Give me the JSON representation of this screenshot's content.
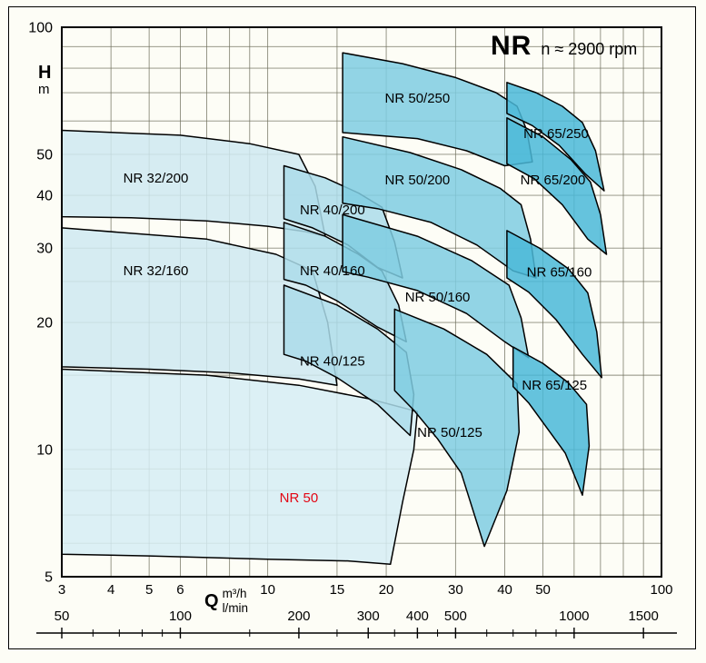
{
  "page": {
    "background": "#fdfdf6"
  },
  "title": {
    "main": "NR",
    "subtitle": "n ≈ 2900 rpm"
  },
  "axes_text": {
    "y_symbol": "H",
    "y_unit": "m",
    "x_symbol": "Q",
    "x_unit_primary": "m³/h",
    "x_unit_secondary": "l/min"
  },
  "chart_data": {
    "type": "area",
    "title": "NR",
    "subtitle": "n ≈ 2900 rpm",
    "scale": "log-log",
    "grid": true,
    "colors": {
      "grid": "#70705e",
      "frame": "#000000",
      "outline": "#000000",
      "family_32": "#cfe9f1",
      "family_40": "#abdcea",
      "family_50": "#7fcde2",
      "family_65": "#4ab9d8",
      "base": "#d6edf4",
      "red_label": "#e30613"
    },
    "x_axis": {
      "unit_primary": "m³/h",
      "unit_secondary": "l/min",
      "range_m3h": [
        3,
        100
      ],
      "labeled_ticks_m3h": [
        3,
        4,
        5,
        6,
        10,
        15,
        20,
        30,
        40,
        50,
        100
      ],
      "grid_m3h": [
        3,
        4,
        5,
        6,
        7,
        8,
        9,
        10,
        15,
        20,
        30,
        40,
        50,
        60,
        70,
        80,
        90,
        100
      ],
      "labeled_ticks_lmin": [
        50,
        100,
        200,
        300,
        400,
        500,
        1000,
        1500
      ],
      "ruler_ticks_lmin": [
        50,
        60,
        70,
        80,
        90,
        100,
        150,
        200,
        250,
        300,
        350,
        400,
        450,
        500,
        600,
        700,
        800,
        900,
        1000,
        1500
      ],
      "m3h_per_lmin": 0.06
    },
    "y_axis": {
      "unit": "m",
      "range": [
        5,
        100
      ],
      "labeled_ticks": [
        100,
        50,
        40,
        30,
        20,
        10,
        5
      ],
      "grid": [
        5,
        6,
        7,
        8,
        9,
        10,
        15,
        20,
        25,
        30,
        40,
        50,
        60,
        70,
        80,
        90,
        100
      ]
    },
    "envelopes": [
      {
        "name": "NR 50",
        "family": "base",
        "color": "#d6edf4",
        "label": {
          "q": 12,
          "h": 7.7,
          "color": "#e30613"
        },
        "points": [
          [
            3,
            15.5
          ],
          [
            7,
            15
          ],
          [
            12,
            14.2
          ],
          [
            18,
            13.2
          ],
          [
            24,
            12.3
          ],
          [
            23.5,
            10
          ],
          [
            22,
            7.5
          ],
          [
            20.5,
            5.35
          ],
          [
            16,
            5.45
          ],
          [
            10,
            5.5
          ],
          [
            5,
            5.6
          ],
          [
            3,
            5.65
          ]
        ]
      },
      {
        "name": "NR 32/200",
        "family": "32",
        "color": "#cfe9f1",
        "label": {
          "q": 5.2,
          "h": 44,
          "color": "#000000"
        },
        "points": [
          [
            3,
            57
          ],
          [
            6,
            55.5
          ],
          [
            9,
            53
          ],
          [
            12,
            50
          ],
          [
            13.2,
            42
          ],
          [
            14,
            32
          ],
          [
            12.5,
            32.8
          ],
          [
            10,
            33.8
          ],
          [
            7,
            34.8
          ],
          [
            4.5,
            35.4
          ],
          [
            3,
            35.6
          ]
        ]
      },
      {
        "name": "NR 32/160",
        "family": "32",
        "color": "#cfe9f1",
        "label": {
          "q": 5.2,
          "h": 26.5,
          "color": "#000000"
        },
        "points": [
          [
            3,
            33.5
          ],
          [
            7,
            31.5
          ],
          [
            10.5,
            29
          ],
          [
            13,
            26.5
          ],
          [
            14.2,
            20
          ],
          [
            15,
            14.2
          ],
          [
            12,
            14.7
          ],
          [
            8,
            15.2
          ],
          [
            5,
            15.5
          ],
          [
            3,
            15.7
          ]
        ]
      },
      {
        "name": "NR 40/200",
        "family": "40",
        "color": "#abdcea",
        "label": {
          "q": 14.6,
          "h": 37,
          "color": "#000000"
        },
        "points": [
          [
            11,
            47
          ],
          [
            14,
            44
          ],
          [
            17,
            40.5
          ],
          [
            19.5,
            37.5
          ],
          [
            21,
            31
          ],
          [
            22,
            25.5
          ],
          [
            19,
            27
          ],
          [
            16,
            30.5
          ],
          [
            13,
            33.5
          ],
          [
            11,
            35.2
          ]
        ]
      },
      {
        "name": "NR 40/160",
        "family": "40",
        "color": "#abdcea",
        "label": {
          "q": 14.6,
          "h": 26.5,
          "color": "#000000"
        },
        "points": [
          [
            11,
            34.5
          ],
          [
            14,
            32
          ],
          [
            17,
            29
          ],
          [
            19.5,
            26.5
          ],
          [
            21.5,
            22
          ],
          [
            22.5,
            18
          ],
          [
            19,
            19.5
          ],
          [
            15,
            22.5
          ],
          [
            12.5,
            24.5
          ],
          [
            11,
            25.3
          ]
        ]
      },
      {
        "name": "NR 40/125",
        "family": "40",
        "color": "#abdcea",
        "label": {
          "q": 14.6,
          "h": 16.2,
          "color": "#000000"
        },
        "points": [
          [
            11,
            24.5
          ],
          [
            15,
            22
          ],
          [
            19,
            19.3
          ],
          [
            22.5,
            17
          ],
          [
            23.5,
            13.5
          ],
          [
            23,
            10.8
          ],
          [
            19,
            12.8
          ],
          [
            15,
            14.8
          ],
          [
            12.5,
            16.2
          ],
          [
            11,
            16.8
          ]
        ]
      },
      {
        "name": "NR 50/250",
        "family": "50",
        "color": "#7fcde2",
        "label": {
          "q": 24,
          "h": 68,
          "color": "#000000"
        },
        "points": [
          [
            15.5,
            87
          ],
          [
            22,
            82
          ],
          [
            30,
            76
          ],
          [
            38,
            70
          ],
          [
            43,
            65
          ],
          [
            45.5,
            57
          ],
          [
            47,
            48
          ],
          [
            40,
            47
          ],
          [
            32,
            51
          ],
          [
            24,
            54.5
          ],
          [
            18,
            55.7
          ],
          [
            15.5,
            56.3
          ]
        ]
      },
      {
        "name": "NR 50/200",
        "family": "50",
        "color": "#7fcde2",
        "label": {
          "q": 24,
          "h": 43.5,
          "color": "#000000"
        },
        "points": [
          [
            15.5,
            55
          ],
          [
            23,
            50.5
          ],
          [
            31,
            46
          ],
          [
            39,
            41.5
          ],
          [
            44,
            38
          ],
          [
            46.5,
            31.5
          ],
          [
            48,
            25.5
          ],
          [
            42,
            26.5
          ],
          [
            34,
            30.5
          ],
          [
            26,
            34.5
          ],
          [
            19,
            37.2
          ],
          [
            15.5,
            38.3
          ]
        ]
      },
      {
        "name": "NR 50/160",
        "family": "50",
        "color": "#7fcde2",
        "label": {
          "q": 27,
          "h": 23,
          "color": "#000000"
        },
        "points": [
          [
            15.5,
            36
          ],
          [
            24,
            32
          ],
          [
            33,
            28
          ],
          [
            41,
            24.5
          ],
          [
            44,
            20.5
          ],
          [
            46,
            16.5
          ],
          [
            40,
            18
          ],
          [
            32,
            21
          ],
          [
            24,
            23.8
          ],
          [
            18,
            25.6
          ],
          [
            15.5,
            26.4
          ]
        ]
      },
      {
        "name": "NR 50/125",
        "family": "50",
        "color": "#7fcde2",
        "label": {
          "q": 29,
          "h": 11,
          "color": "#000000"
        },
        "points": [
          [
            21,
            21.5
          ],
          [
            28,
            19.3
          ],
          [
            36,
            16.8
          ],
          [
            43,
            14.3
          ],
          [
            43.5,
            11
          ],
          [
            40.5,
            8
          ],
          [
            35.5,
            5.9
          ],
          [
            31,
            8.8
          ],
          [
            27,
            10.6
          ],
          [
            23.5,
            12.4
          ],
          [
            21,
            13.8
          ]
        ]
      },
      {
        "name": "NR 65/250",
        "family": "65",
        "color": "#4ab9d8",
        "label": {
          "q": 54,
          "h": 56,
          "color": "#000000"
        },
        "points": [
          [
            40.5,
            74
          ],
          [
            48,
            70
          ],
          [
            56,
            65
          ],
          [
            63,
            59.5
          ],
          [
            68,
            51
          ],
          [
            71.5,
            41
          ],
          [
            64,
            45
          ],
          [
            55,
            52.5
          ],
          [
            47,
            58.5
          ],
          [
            40.5,
            62.5
          ]
        ]
      },
      {
        "name": "NR 65/200",
        "family": "65",
        "color": "#4ab9d8",
        "label": {
          "q": 53,
          "h": 43.5,
          "color": "#000000"
        },
        "points": [
          [
            40.5,
            61
          ],
          [
            50,
            55
          ],
          [
            59,
            48.5
          ],
          [
            66,
            43
          ],
          [
            70,
            36
          ],
          [
            72.5,
            29
          ],
          [
            65,
            31.5
          ],
          [
            56,
            38
          ],
          [
            47.5,
            43.8
          ],
          [
            40.5,
            47.5
          ]
        ]
      },
      {
        "name": "NR 65/160",
        "family": "65",
        "color": "#4ab9d8",
        "label": {
          "q": 55,
          "h": 26.3,
          "color": "#000000"
        },
        "points": [
          [
            40.5,
            33
          ],
          [
            49,
            30
          ],
          [
            58,
            26.8
          ],
          [
            65,
            23.5
          ],
          [
            68.5,
            19
          ],
          [
            70.5,
            14.8
          ],
          [
            63,
            16.8
          ],
          [
            54,
            20.3
          ],
          [
            46,
            23.6
          ],
          [
            40.5,
            25.5
          ]
        ]
      },
      {
        "name": "NR 65/125",
        "family": "65",
        "color": "#4ab9d8",
        "label": {
          "q": 53.5,
          "h": 14.2,
          "color": "#000000"
        },
        "points": [
          [
            42,
            17.5
          ],
          [
            50,
            16
          ],
          [
            58,
            14.4
          ],
          [
            64.5,
            12.8
          ],
          [
            65.5,
            10.2
          ],
          [
            63,
            7.8
          ],
          [
            57,
            9.8
          ],
          [
            51,
            11.3
          ],
          [
            46,
            12.9
          ],
          [
            42,
            14.1
          ]
        ]
      }
    ]
  }
}
